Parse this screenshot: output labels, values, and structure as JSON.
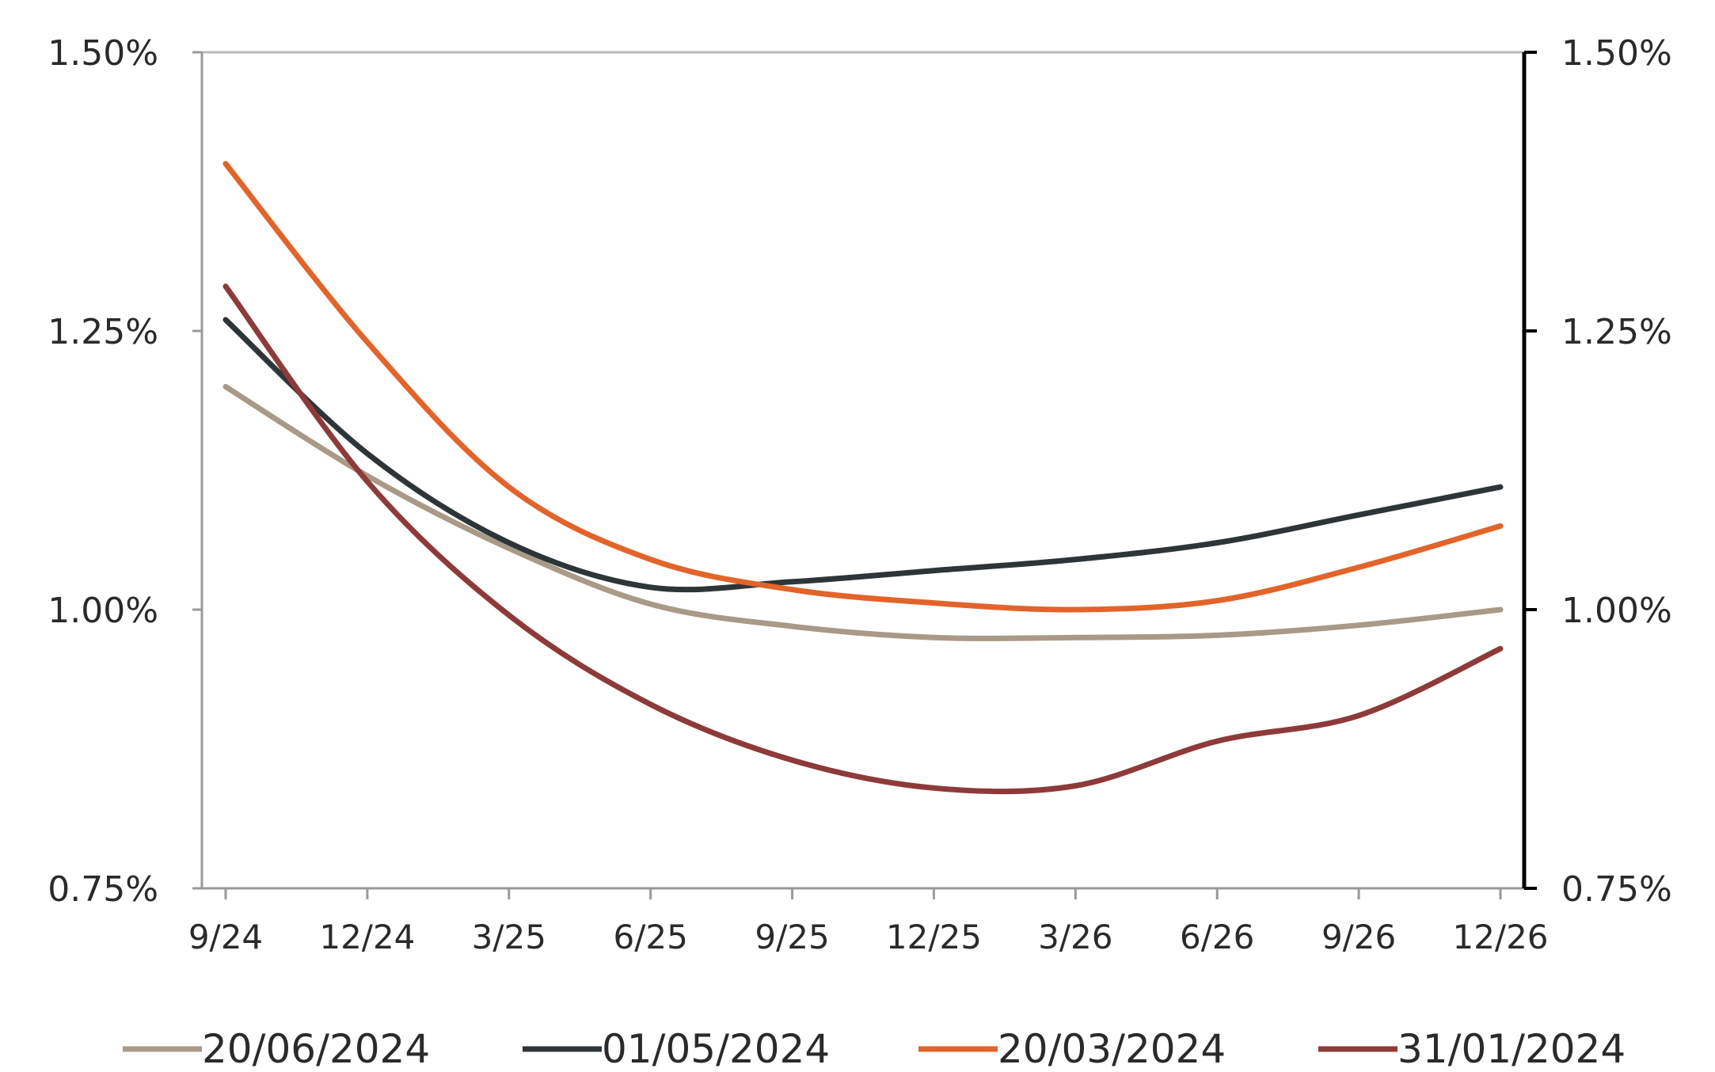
{
  "chart_data": {
    "type": "line",
    "title": "",
    "xlabel": "",
    "ylabel": "",
    "categories": [
      "9/24",
      "12/24",
      "3/25",
      "6/25",
      "9/25",
      "12/25",
      "3/26",
      "6/26",
      "9/26",
      "12/26"
    ],
    "ylim": [
      0.75,
      1.5
    ],
    "y_ticks": [
      "0.75%",
      "1.00%",
      "1.25%",
      "1.50%"
    ],
    "y_tick_values": [
      0.75,
      1.0,
      1.25,
      1.5
    ],
    "secondary_y_axis": true,
    "grid": false,
    "legend_position": "bottom",
    "series": [
      {
        "name": "20/06/2024",
        "color": "#a99a88",
        "values": [
          1.2,
          1.12,
          1.055,
          1.005,
          0.985,
          0.975,
          0.975,
          0.977,
          0.986,
          1.0
        ]
      },
      {
        "name": "01/05/2024",
        "color": "#2e3538",
        "values": [
          1.26,
          1.14,
          1.06,
          1.02,
          1.025,
          1.035,
          1.045,
          1.06,
          1.085,
          1.11
        ]
      },
      {
        "name": "20/03/2024",
        "color": "#e2642a",
        "values": [
          1.4,
          1.24,
          1.11,
          1.045,
          1.018,
          1.006,
          1.0,
          1.008,
          1.038,
          1.075
        ]
      },
      {
        "name": "31/01/2024",
        "color": "#8e3a3a",
        "values": [
          1.29,
          1.115,
          0.995,
          0.915,
          0.865,
          0.84,
          0.842,
          0.882,
          0.905,
          0.965
        ]
      }
    ]
  }
}
